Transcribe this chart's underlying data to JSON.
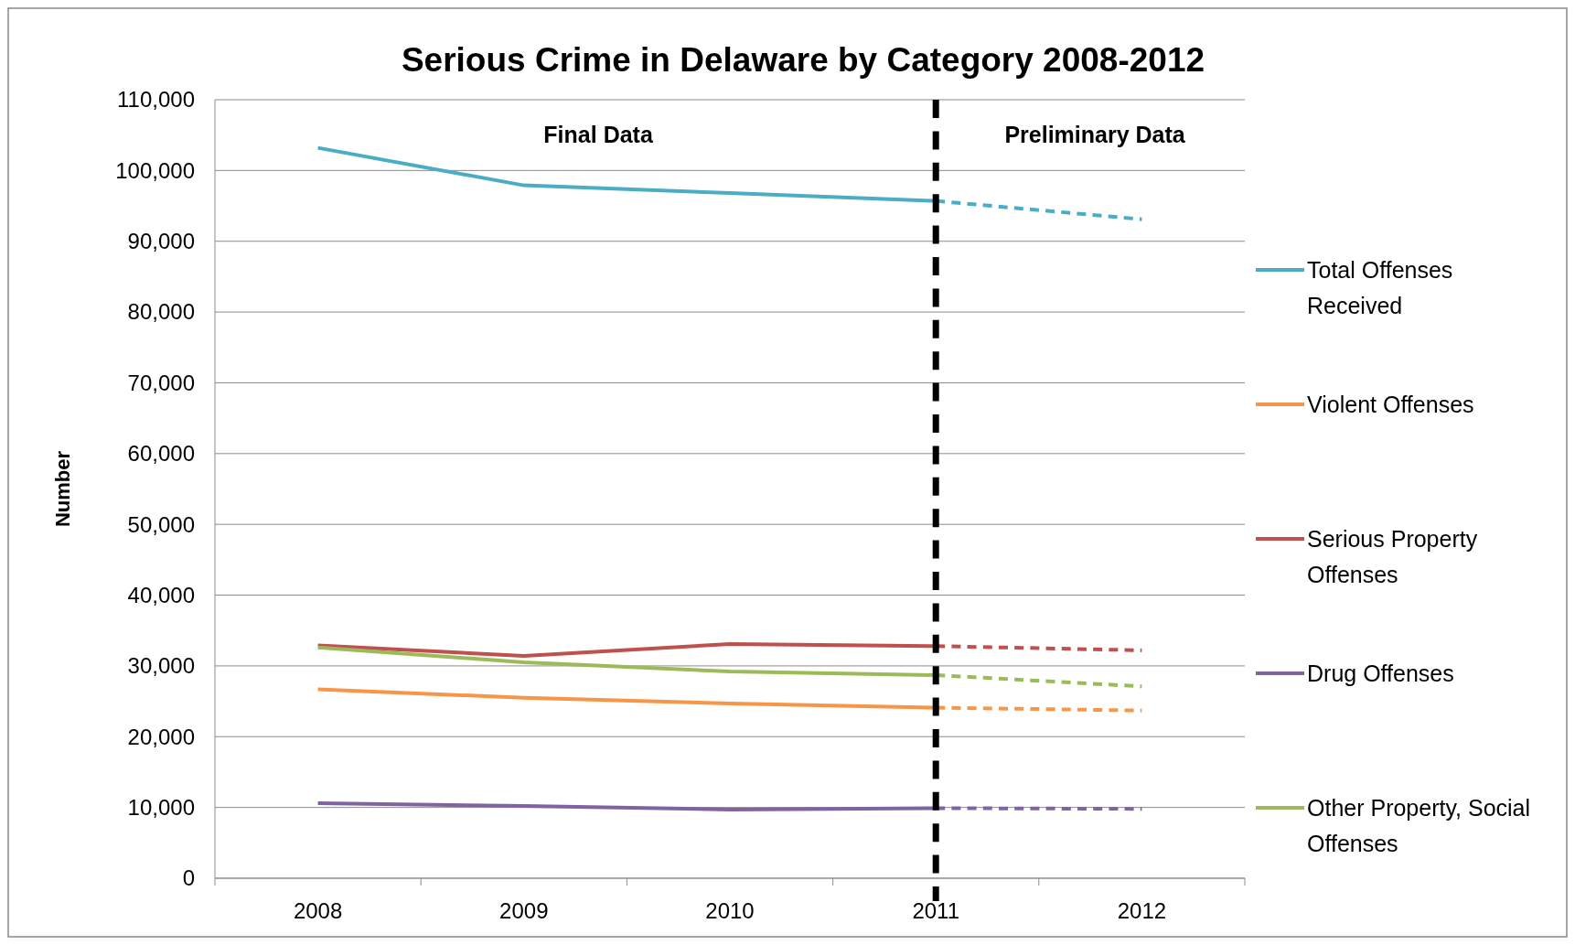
{
  "chart_data": {
    "type": "line",
    "title": "Serious Crime in Delaware by Category 2008-2012",
    "ylabel": "Number",
    "categories": [
      "2008",
      "2009",
      "2010",
      "2011",
      "2012"
    ],
    "ylim": [
      0,
      110000
    ],
    "yticks": [
      {
        "value": 0,
        "label": "0"
      },
      {
        "value": 10000,
        "label": "10,000"
      },
      {
        "value": 20000,
        "label": "20,000"
      },
      {
        "value": 30000,
        "label": "30,000"
      },
      {
        "value": 40000,
        "label": "40,000"
      },
      {
        "value": 50000,
        "label": "50,000"
      },
      {
        "value": 60000,
        "label": "60,000"
      },
      {
        "value": 70000,
        "label": "70,000"
      },
      {
        "value": 80000,
        "label": "80,000"
      },
      {
        "value": 90000,
        "label": "90,000"
      },
      {
        "value": 100000,
        "label": "100,000"
      },
      {
        "value": 110000,
        "label": "110,000"
      }
    ],
    "grid": "y",
    "legend": "right",
    "marker": "none",
    "series": [
      {
        "name": "Total Offenses Received",
        "color": "#4bacc6",
        "line_style": "solid",
        "values": [
          103200,
          97900,
          96800,
          95700,
          null
        ]
      },
      {
        "name": "Violent Offenses",
        "color": "#f79646",
        "line_style": "solid",
        "values": [
          26700,
          25500,
          24700,
          24100,
          null
        ]
      },
      {
        "name": "Serious Property Offenses",
        "color": "#c0504d",
        "line_style": "solid",
        "values": [
          32900,
          31400,
          33100,
          32800,
          null
        ]
      },
      {
        "name": "Drug Offenses",
        "color": "#8064a2",
        "line_style": "solid",
        "values": [
          10600,
          10200,
          9700,
          9900,
          null
        ]
      },
      {
        "name": "Other Property, Social Offenses",
        "color": "#9bbb59",
        "line_style": "solid",
        "values": [
          32600,
          30500,
          29200,
          28700,
          null
        ]
      },
      {
        "color": "#4bacc6",
        "line_style": "dashed",
        "values": [
          null,
          null,
          null,
          95700,
          93100
        ]
      },
      {
        "color": "#f79646",
        "line_style": "dashed",
        "values": [
          null,
          null,
          null,
          24100,
          23700
        ]
      },
      {
        "color": "#c0504d",
        "line_style": "dashed",
        "values": [
          null,
          null,
          null,
          32800,
          32200
        ]
      },
      {
        "color": "#8064a2",
        "line_style": "dashed",
        "values": [
          null,
          null,
          null,
          9900,
          9800
        ]
      },
      {
        "color": "#9bbb59",
        "line_style": "dashed",
        "values": [
          null,
          null,
          null,
          28700,
          27100
        ]
      }
    ],
    "ref_lines": [
      {
        "axis": "x",
        "value": "2011",
        "color": "#000000",
        "line_style": "dashed"
      }
    ],
    "annotations": [
      "Final Data",
      "Preliminary Data"
    ]
  }
}
